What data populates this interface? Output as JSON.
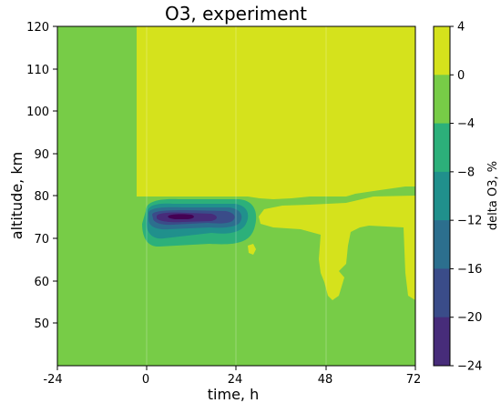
{
  "chart_data": {
    "type": "heatmap",
    "title": "O3, experiment",
    "xlabel": "time, h",
    "ylabel": "altitude, km",
    "xlim": [
      -24,
      72
    ],
    "ylim": [
      40,
      120
    ],
    "x_ticks": [
      "-24",
      "0",
      "24",
      "48",
      "72"
    ],
    "y_ticks": [
      "50",
      "60",
      "70",
      "80",
      "90",
      "100",
      "110",
      "120"
    ],
    "colorbar": {
      "label": "delta O3, %",
      "levels": [
        4,
        0,
        -4,
        -8,
        -12,
        -16,
        -20,
        -24
      ],
      "tick_labels": [
        "4",
        "0",
        "−4",
        "−8",
        "−12",
        "−16",
        "−20",
        "−24"
      ],
      "colors": [
        "#d5e21c",
        "#77cc47",
        "#2cb07a",
        "#20908c",
        "#2c6f8e",
        "#3a4c89",
        "#472c7a"
      ]
    },
    "background_level": "-4 to 0",
    "regions": [
      {
        "level": "0 to 4",
        "area": "t > 0 h, altitude > 80 km"
      },
      {
        "level": "0 to 4",
        "area": "t 28 to 72 h, altitude 57 to 79 km (tongue)"
      },
      {
        "level": "-8 to -4",
        "area": "t 2 to 28 h, altitude 67 to 79 km"
      },
      {
        "level": "-12 to -8",
        "area": "t 3 to 25 h, altitude 70 to 78 km"
      },
      {
        "level": "-16 to -12",
        "area": "t 4 to 24 h, altitude 72 to 77 km"
      },
      {
        "level": "-20 to -16",
        "area": "t 5 to 20 h, altitude 73 to 77 km"
      },
      {
        "level": "-24 to -20",
        "area": "t 6 to 16 h, altitude 74 to 76 km"
      }
    ],
    "grid": true,
    "colormap": "viridis"
  }
}
